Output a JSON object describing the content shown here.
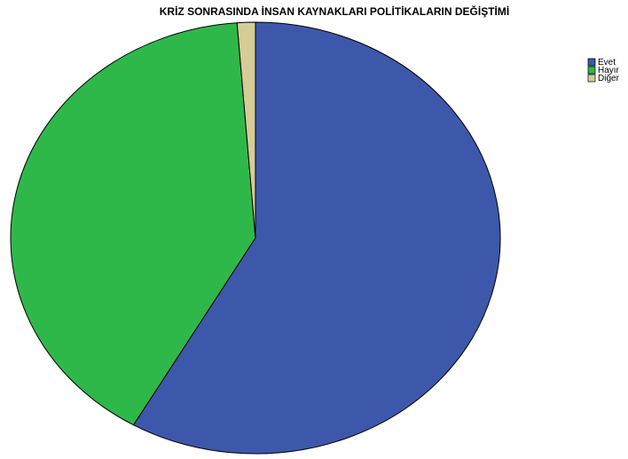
{
  "chart_data": {
    "type": "pie",
    "title": "KRİZ SONRASINDA İNSAN KAYNAKLARI POLİTİKALARIN DEĞİŞTİMİ",
    "categories": [
      "Evet",
      "Hayır",
      "Diğer"
    ],
    "values": [
      58.3,
      40.5,
      1.2
    ],
    "colors": [
      "#3d58ab",
      "#2fb84a",
      "#d5cc98"
    ],
    "legend": "top-right"
  }
}
